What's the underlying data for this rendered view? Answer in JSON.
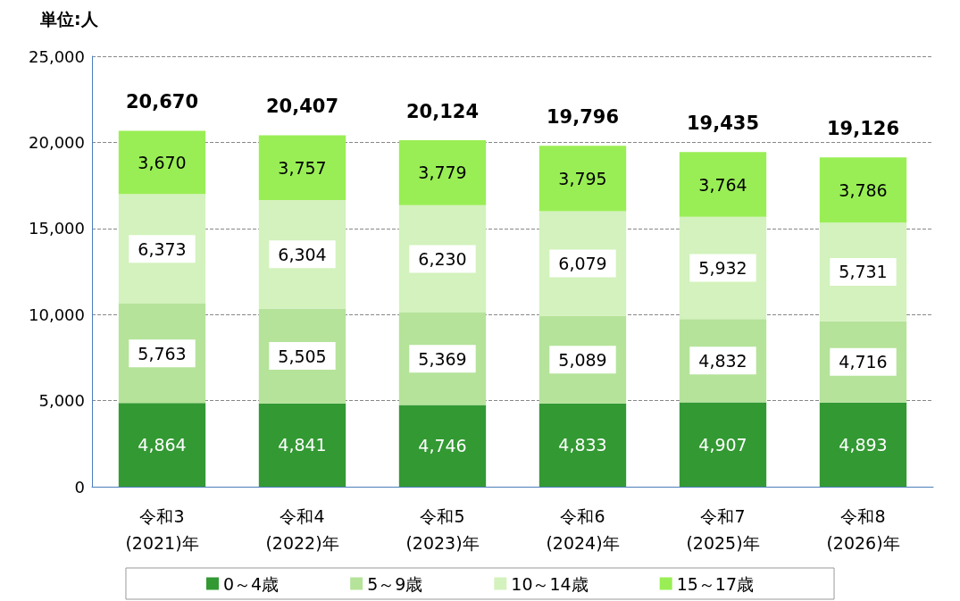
{
  "chart_data": {
    "type": "bar",
    "stacked": true,
    "ylabel": "単位:人",
    "categories": [
      "令和3\n(2021)年",
      "令和4\n(2022)年",
      "令和5\n(2023)年",
      "令和6\n(2024)年",
      "令和7\n(2025)年",
      "令和8\n(2026)年"
    ],
    "series": [
      {
        "name": "0～4歳",
        "color": "#339933",
        "values": [
          4864,
          4841,
          4746,
          4833,
          4907,
          4893
        ],
        "value_labels": [
          "4,864",
          "4,841",
          "4,746",
          "4,833",
          "4,907",
          "4,893"
        ]
      },
      {
        "name": "5～9歳",
        "color": "#b5e39a",
        "values": [
          5763,
          5505,
          5369,
          5089,
          4832,
          4716
        ],
        "value_labels": [
          "5,763",
          "5,505",
          "5,369",
          "5,089",
          "4,832",
          "4,716"
        ]
      },
      {
        "name": "10～14歳",
        "color": "#d3f2bd",
        "values": [
          6373,
          6304,
          6230,
          6079,
          5932,
          5731
        ],
        "value_labels": [
          "6,373",
          "6,304",
          "6,230",
          "6,079",
          "5,932",
          "5,731"
        ]
      },
      {
        "name": "15～17歳",
        "color": "#99ee55",
        "values": [
          3670,
          3757,
          3779,
          3795,
          3764,
          3786
        ],
        "value_labels": [
          "3,670",
          "3,757",
          "3,779",
          "3,795",
          "3,764",
          "3,786"
        ]
      }
    ],
    "totals": [
      "20,670",
      "20,407",
      "20,124",
      "19,796",
      "19,435",
      "19,126"
    ],
    "ylim": [
      0,
      25000
    ],
    "yticks": [
      0,
      {
        "value": 5000,
        "label": "5,000"
      },
      {
        "value": 10000,
        "label": "10,000"
      },
      {
        "value": 15000,
        "label": "15,000"
      },
      {
        "value": 20000,
        "label": "20,000"
      },
      {
        "value": 25000,
        "label": "25,000"
      }
    ],
    "grid": "y",
    "legend": "bottom"
  }
}
